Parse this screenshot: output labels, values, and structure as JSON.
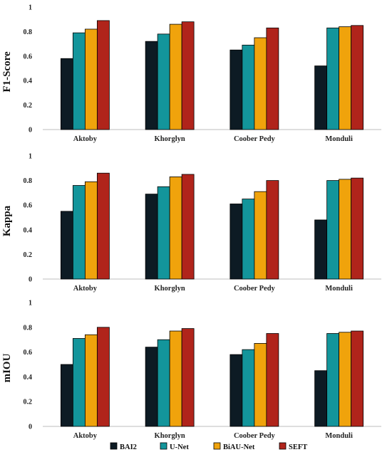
{
  "chart_data": [
    {
      "type": "bar",
      "ylabel": "F1-Score",
      "ylim": [
        0,
        1
      ],
      "yticks": [
        "0",
        "0.2",
        "0.4",
        "0.6",
        "0.8",
        "1"
      ],
      "categories": [
        "Aktoby",
        "Khorglyn",
        "Coober Pedy",
        "Monduli"
      ],
      "series": [
        {
          "name": "BAI2",
          "values": [
            0.58,
            0.72,
            0.65,
            0.52
          ]
        },
        {
          "name": "U-Net",
          "values": [
            0.79,
            0.78,
            0.69,
            0.83
          ]
        },
        {
          "name": "BiAU-Net",
          "values": [
            0.82,
            0.86,
            0.75,
            0.84
          ]
        },
        {
          "name": "SEFT",
          "values": [
            0.89,
            0.88,
            0.83,
            0.85
          ]
        }
      ]
    },
    {
      "type": "bar",
      "ylabel": "Kappa",
      "ylim": [
        0,
        1
      ],
      "yticks": [
        "0",
        "0.2",
        "0.4",
        "0.6",
        "0.8",
        "1"
      ],
      "categories": [
        "Aktoby",
        "Khorglyn",
        "Coober Pedy",
        "Monduli"
      ],
      "series": [
        {
          "name": "BAI2",
          "values": [
            0.55,
            0.69,
            0.61,
            0.48
          ]
        },
        {
          "name": "U-Net",
          "values": [
            0.76,
            0.75,
            0.65,
            0.8
          ]
        },
        {
          "name": "BiAU-Net",
          "values": [
            0.79,
            0.83,
            0.71,
            0.81
          ]
        },
        {
          "name": "SEFT",
          "values": [
            0.86,
            0.85,
            0.8,
            0.82
          ]
        }
      ]
    },
    {
      "type": "bar",
      "ylabel": "mIOU",
      "ylim": [
        0,
        1
      ],
      "yticks": [
        "0",
        "0.2",
        "0.4",
        "0.6",
        "0.8",
        "1"
      ],
      "categories": [
        "Aktoby",
        "Khorglyn",
        "Coober Pedy",
        "Monduli"
      ],
      "series": [
        {
          "name": "BAI2",
          "values": [
            0.5,
            0.64,
            0.58,
            0.45
          ]
        },
        {
          "name": "U-Net",
          "values": [
            0.71,
            0.7,
            0.62,
            0.75
          ]
        },
        {
          "name": "BiAU-Net",
          "values": [
            0.74,
            0.77,
            0.67,
            0.76
          ]
        },
        {
          "name": "SEFT",
          "values": [
            0.8,
            0.79,
            0.75,
            0.77
          ]
        }
      ]
    }
  ],
  "legend": {
    "placement": "bottom",
    "items": [
      {
        "label": "BAI2",
        "color": "#0d1b24"
      },
      {
        "label": "U-Net",
        "color": "#13959b"
      },
      {
        "label": "BiAU-Net",
        "color": "#f0a30c"
      },
      {
        "label": "SEFT",
        "color": "#b0241b"
      }
    ]
  }
}
